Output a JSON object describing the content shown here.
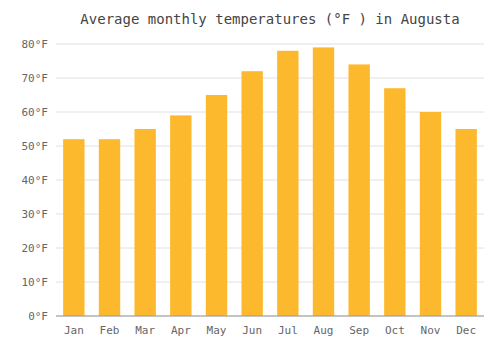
{
  "chart_data": {
    "type": "bar",
    "title": "Average monthly temperatures (°F ) in Augusta",
    "categories": [
      "Jan",
      "Feb",
      "Mar",
      "Apr",
      "May",
      "Jun",
      "Jul",
      "Aug",
      "Sep",
      "Oct",
      "Nov",
      "Dec"
    ],
    "values": [
      52,
      52,
      55,
      59,
      65,
      72,
      78,
      79,
      74,
      67,
      60,
      55
    ],
    "color": "#FDB92E",
    "ylim": [
      0,
      80
    ],
    "yticks": [
      {
        "value": 0,
        "label": "0°F"
      },
      {
        "value": 10,
        "label": "10°F"
      },
      {
        "value": 20,
        "label": "20°F"
      },
      {
        "value": 30,
        "label": "30°F"
      },
      {
        "value": 40,
        "label": "40°F"
      },
      {
        "value": 50,
        "label": "50°F"
      },
      {
        "value": 60,
        "label": "60°F"
      },
      {
        "value": 70,
        "label": "70°F"
      },
      {
        "value": 80,
        "label": "80°F"
      }
    ],
    "grid": true
  }
}
